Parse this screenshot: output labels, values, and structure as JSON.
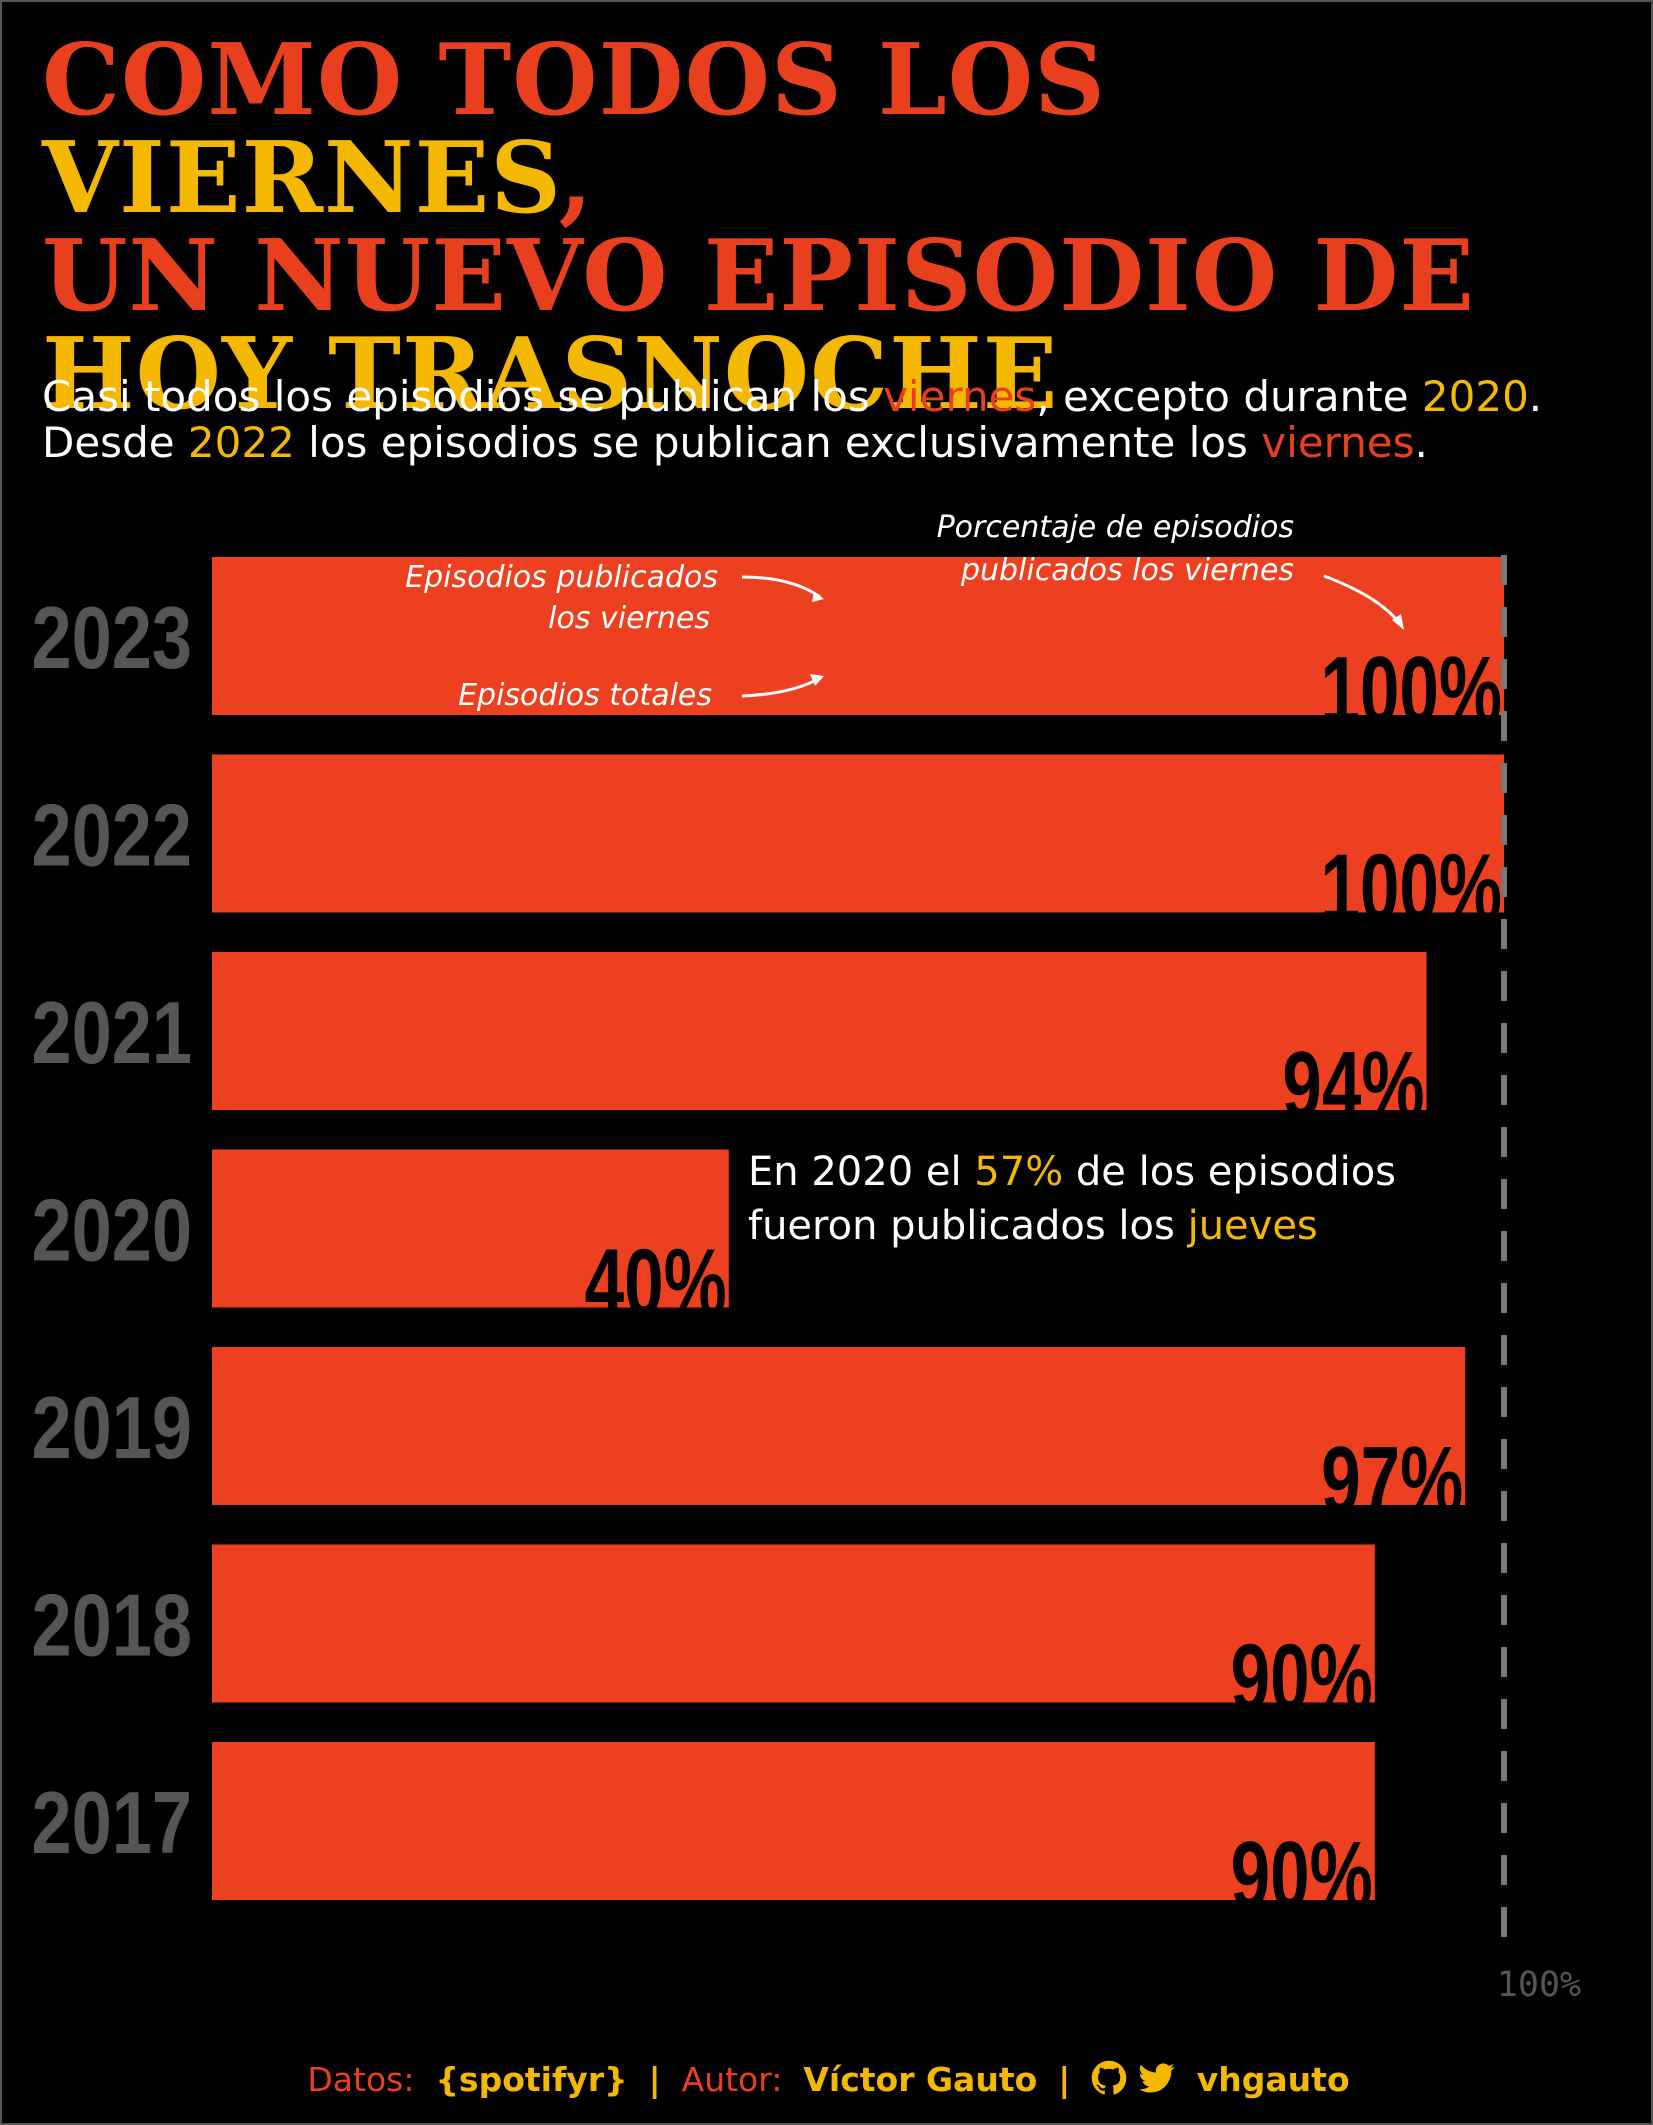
{
  "colors": {
    "background": "#000000",
    "bar": "#ED4021",
    "accent_red": "#E8401F",
    "accent_yellow": "#F5B800",
    "year_label": "#555555",
    "reference_line": "#777777",
    "text": "#FFFFFF"
  },
  "title": {
    "line1_part1": "COMO TODOS LOS ",
    "line1_part2": "VIERNES",
    "line1_part3": ",",
    "line2": "UN NUEVO EPISODIO DE",
    "line3": "HOY TRASNOCHE"
  },
  "subtitle": {
    "l1_a": "Casi todos los episodios se publican los ",
    "l1_b": "viernes",
    "l1_c": ", excepto durante ",
    "l1_d": "2020",
    "l1_e": ".",
    "l2_a": "Desde ",
    "l2_b": "2022",
    "l2_c": " los episodios se publican exclusivamente los ",
    "l2_d": "viernes",
    "l2_e": "."
  },
  "chart_data": {
    "type": "bar",
    "orientation": "horizontal",
    "categories": [
      "2023",
      "2022",
      "2021",
      "2020",
      "2019",
      "2018",
      "2017"
    ],
    "values": [
      100,
      100,
      94,
      40,
      97,
      90,
      90
    ],
    "value_labels": [
      "100%",
      "100%",
      "94%",
      "40%",
      "97%",
      "90%",
      "90%"
    ],
    "xlim": [
      0,
      100
    ],
    "reference_line": {
      "value": 100,
      "label": "100%"
    },
    "legend_annotations": {
      "viernes_l1": "Episodios publicados",
      "viernes_l2": "los viernes",
      "totales": "Episodios totales",
      "pct_l1": "Porcentaje de episodios",
      "pct_l2": "publicados los viernes"
    },
    "note": {
      "l1_a": "En 2020 el ",
      "l1_b": "57%",
      "l1_c": " de los episodios",
      "l2_a": "fueron publicados los ",
      "l2_b": "jueves"
    }
  },
  "footer": {
    "datos_label": "Datos:",
    "datos_value": "{spotifyr}",
    "sep": "|",
    "autor_label": "Autor:",
    "autor_value": "Víctor Gauto",
    "handle": "vhgauto",
    "icons": [
      "github-icon",
      "twitter-icon"
    ]
  }
}
